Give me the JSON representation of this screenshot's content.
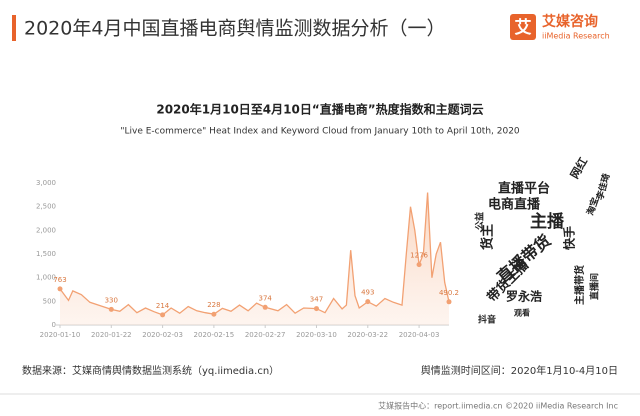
{
  "header": {
    "title": "2020年4月中国直播电商舆情监测数据分析（一）",
    "logo_mark": "艾",
    "logo_cn": "艾媒咨询",
    "logo_en": "iiMedia Research"
  },
  "chart_data": {
    "type": "line",
    "title": "2020年1月10日至4月10日“直播电商”热度指数和主题词云",
    "subtitle": "\"Live E-commerce\" Heat Index and Keyword Cloud from January 10th to April 10th, 2020",
    "x": [
      "2020-01-10",
      "2020-01-12",
      "2020-01-13",
      "2020-01-15",
      "2020-01-17",
      "2020-01-19",
      "2020-01-22",
      "2020-01-24",
      "2020-01-26",
      "2020-01-28",
      "2020-01-30",
      "2020-02-01",
      "2020-02-03",
      "2020-02-05",
      "2020-02-07",
      "2020-02-09",
      "2020-02-11",
      "2020-02-13",
      "2020-02-15",
      "2020-02-17",
      "2020-02-19",
      "2020-02-21",
      "2020-02-23",
      "2020-02-25",
      "2020-02-27",
      "2020-03-01",
      "2020-03-03",
      "2020-03-05",
      "2020-03-07",
      "2020-03-10",
      "2020-03-12",
      "2020-03-14",
      "2020-03-16",
      "2020-03-17",
      "2020-03-18",
      "2020-03-19",
      "2020-03-20",
      "2020-03-22",
      "2020-03-24",
      "2020-03-26",
      "2020-03-28",
      "2020-03-30",
      "2020-03-31",
      "2020-04-01",
      "2020-04-02",
      "2020-04-03",
      "2020-04-04",
      "2020-04-05",
      "2020-04-06",
      "2020-04-07",
      "2020-04-08",
      "2020-04-09",
      "2020-04-10"
    ],
    "series": [
      {
        "color": "#f2a173",
        "values": [
          763,
          520,
          720,
          640,
          480,
          420,
          330,
          290,
          430,
          260,
          360,
          280,
          214,
          360,
          250,
          390,
          300,
          260,
          228,
          350,
          290,
          420,
          300,
          460,
          374,
          300,
          430,
          250,
          360,
          347,
          260,
          560,
          340,
          420,
          1580,
          620,
          360,
          493,
          400,
          560,
          480,
          420,
          1500,
          2500,
          2000,
          1276,
          1500,
          2800,
          1000,
          1500,
          1750,
          900,
          490.2
        ],
        "value_labels": [
          "763",
          null,
          null,
          null,
          null,
          null,
          "330",
          null,
          null,
          null,
          null,
          null,
          "214",
          null,
          null,
          null,
          null,
          null,
          "228",
          null,
          null,
          null,
          null,
          null,
          "374",
          null,
          null,
          null,
          null,
          "347",
          null,
          null,
          null,
          null,
          null,
          null,
          null,
          "493",
          null,
          null,
          null,
          null,
          null,
          null,
          null,
          "1276",
          null,
          null,
          null,
          null,
          null,
          null,
          "490.2"
        ]
      }
    ],
    "xlim": [
      "2020-01-10",
      "2020-04-10"
    ],
    "xticks": [
      "2020-01-10",
      "2020-01-22",
      "2020-02-03",
      "2020-02-15",
      "2020-02-27",
      "2020-03-10",
      "2020-03-22",
      "2020-04-03"
    ],
    "ylim": [
      0,
      3000
    ],
    "yticks": [
      0,
      500,
      {
        "value": 1000,
        "label": "1,000"
      },
      {
        "value": 1500,
        "label": "1,500"
      },
      {
        "value": 2000,
        "label": "2,000"
      },
      {
        "value": 2500,
        "label": "2,500"
      },
      {
        "value": 3000,
        "label": "3,000"
      }
    ],
    "grid": false
  },
  "word_cloud": [
    "直播平台",
    "电商直播",
    "主播",
    "直播带货",
    "带货主播",
    "罗永浩",
    "网红",
    "货主",
    "淘宝",
    "李佳琦",
    "快手",
    "观看",
    "直播间",
    "公益",
    "主播带货",
    "抖音"
  ],
  "footer": {
    "source": "数据来源：艾媒商情舆情数据监测系统（yq.iimedia.cn）",
    "period": "舆情监测时间区间：2020年1月10-4月10日",
    "site": "艾媒报告中心：report.iimedia.cn  ©2020  iiMedia Research  Inc"
  }
}
